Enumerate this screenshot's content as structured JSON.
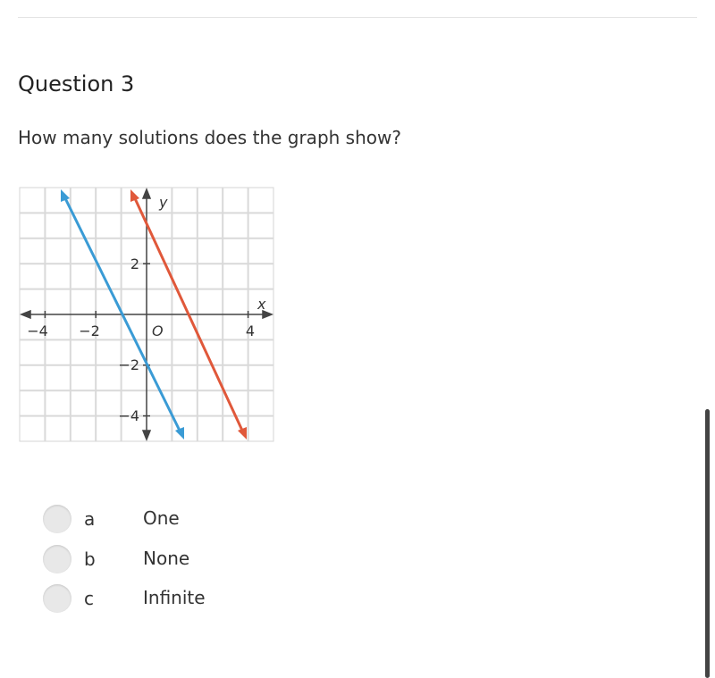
{
  "question": {
    "title": "Question 3",
    "prompt": "How many solutions does the graph show?"
  },
  "graph": {
    "x_label": "x",
    "y_label": "y",
    "origin_label": "O",
    "x_tick_labels": [
      "−4",
      "−2",
      "4"
    ],
    "y_tick_labels": [
      "2",
      "−2",
      "−4"
    ]
  },
  "options": [
    {
      "letter": "a",
      "text": "One"
    },
    {
      "letter": "b",
      "text": "None"
    },
    {
      "letter": "c",
      "text": "Infinite"
    }
  ]
}
